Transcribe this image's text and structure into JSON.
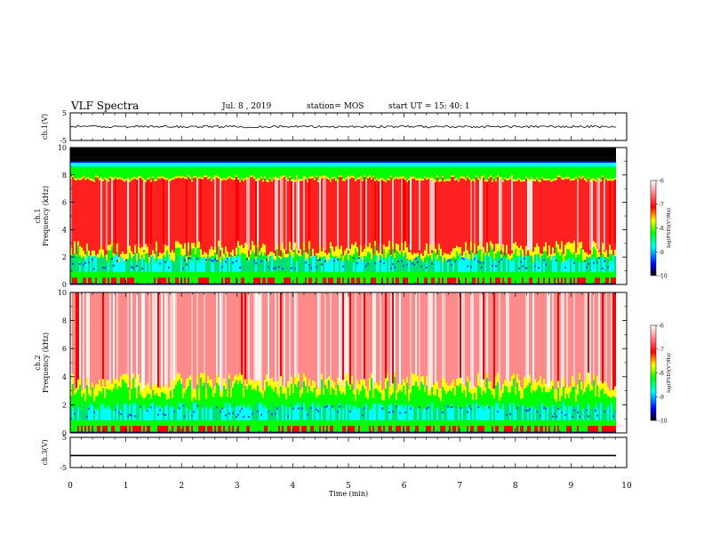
{
  "header": {
    "title": "VLF Spectra",
    "date": "Jul. 8 , 2019",
    "station": "station= MOS",
    "start": "start UT = 15: 40: 1"
  },
  "colors": {
    "background": "#ffffff",
    "frame": "#000000",
    "spectrogram_top_band": "#000000",
    "colormap": [
      "#000000",
      "#0000ff",
      "#00ffff",
      "#00ff00",
      "#ffff00",
      "#ff0000",
      "#ffffff"
    ]
  },
  "chart_data": [
    {
      "type": "line",
      "panel": "ch1-voltage",
      "ylabel": "ch.1(V)",
      "ylim": [
        -5,
        5
      ],
      "yticks": [
        "5",
        "-5"
      ],
      "xlim": [
        0,
        10
      ],
      "series": [
        {
          "value": 0
        }
      ]
    },
    {
      "type": "heatmap",
      "panel": "ch1-spectrogram",
      "ylabel_channel": "ch.1",
      "ylabel": "Frequency (kHz)",
      "ylim": [
        0,
        10
      ],
      "yticks": [
        "0",
        "2",
        "4",
        "6",
        "8",
        "10"
      ],
      "xlim": [
        0,
        10
      ],
      "colorbar": {
        "label": "log(PSD)(V²/Hz)",
        "range": [
          -10,
          -6
        ],
        "ticks": [
          "-6",
          "-7",
          "-8",
          "-9",
          "-10"
        ]
      }
    },
    {
      "type": "heatmap",
      "panel": "ch2-spectrogram",
      "ylabel_channel": "ch.2",
      "ylabel": "Frequency (kHz)",
      "ylim": [
        0,
        10
      ],
      "yticks": [
        "0",
        "2",
        "4",
        "6",
        "8",
        "10"
      ],
      "xlim": [
        0,
        10
      ],
      "colorbar": {
        "label": "log(PSD)(V²/Hz)",
        "range": [
          -10,
          -6
        ],
        "ticks": [
          "-6",
          "-7",
          "-8",
          "-9",
          "-10"
        ]
      }
    },
    {
      "type": "line",
      "panel": "ch3-voltage",
      "ylabel": "ch.3(V)",
      "ylim": [
        -5,
        5
      ],
      "yticks": [
        "5",
        "-5"
      ],
      "xlim": [
        0,
        10
      ],
      "series": [
        {
          "value": -1
        }
      ]
    }
  ],
  "xaxis": {
    "label": "Time (min)",
    "ticks": [
      "0",
      "1",
      "2",
      "3",
      "4",
      "5",
      "6",
      "7",
      "8",
      "9",
      "10"
    ]
  }
}
